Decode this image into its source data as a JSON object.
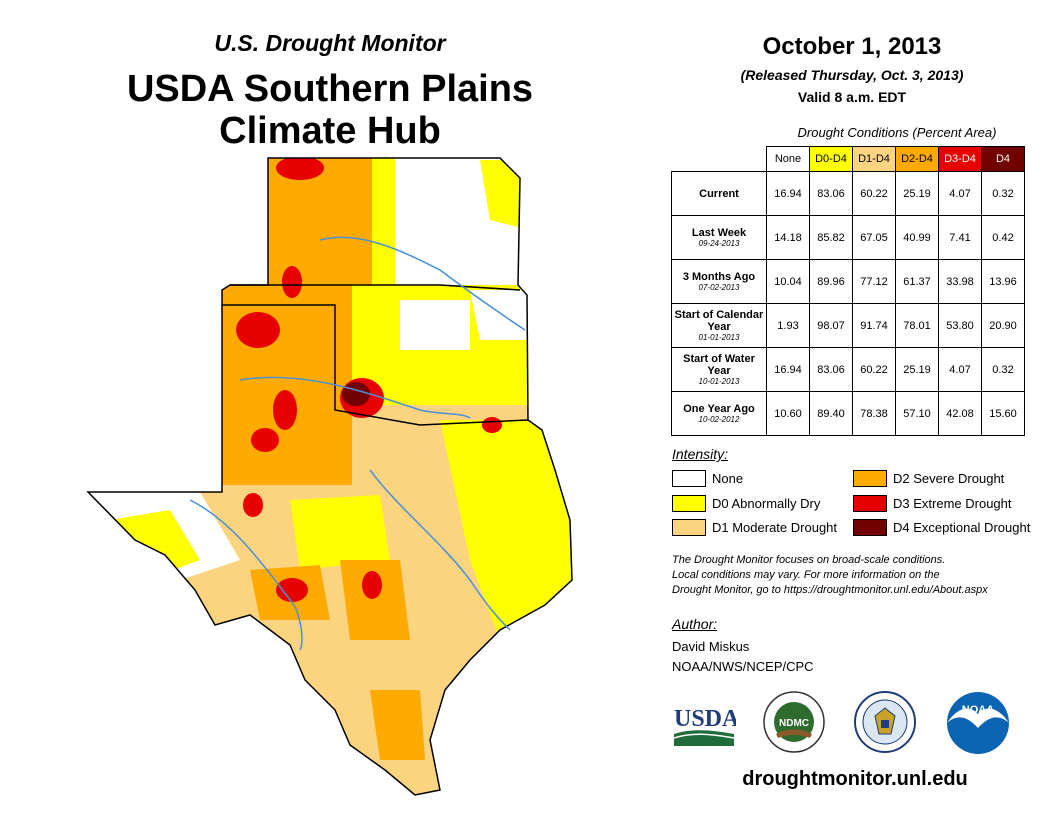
{
  "header": {
    "subtitle": "U.S. Drought Monitor",
    "title_line1": "USDA Southern Plains",
    "title_line2": "Climate Hub"
  },
  "release": {
    "date": "October 1, 2013",
    "released": "(Released Thursday, Oct. 3, 2013)",
    "valid": "Valid 8 a.m. EDT"
  },
  "stats": {
    "caption": "Drought Conditions (Percent Area)",
    "columns": [
      "None",
      "D0-D4",
      "D1-D4",
      "D2-D4",
      "D3-D4",
      "D4"
    ],
    "column_colors": [
      "#ffffff",
      "#ffff00",
      "#fcd37f",
      "#ffaa00",
      "#e60000",
      "#730000"
    ],
    "rows": [
      {
        "label": "Current",
        "date": "",
        "values": [
          "16.94",
          "83.06",
          "60.22",
          "25.19",
          "4.07",
          "0.32"
        ]
      },
      {
        "label": "Last Week",
        "date": "09-24-2013",
        "values": [
          "14.18",
          "85.82",
          "67.05",
          "40.99",
          "7.41",
          "0.42"
        ]
      },
      {
        "label": "3 Months Ago",
        "date": "07-02-2013",
        "values": [
          "10.04",
          "89.96",
          "77.12",
          "61.37",
          "33.98",
          "13.96"
        ]
      },
      {
        "label": "Start of Calendar Year",
        "date": "01-01-2013",
        "values": [
          "1.93",
          "98.07",
          "91.74",
          "78.01",
          "53.80",
          "20.90"
        ]
      },
      {
        "label": "Start of Water Year",
        "date": "10-01-2013",
        "values": [
          "16.94",
          "83.06",
          "60.22",
          "25.19",
          "4.07",
          "0.32"
        ]
      },
      {
        "label": "One Year Ago",
        "date": "10-02-2012",
        "values": [
          "10.60",
          "89.40",
          "78.38",
          "57.10",
          "42.08",
          "15.60"
        ]
      }
    ]
  },
  "legend": {
    "title": "Intensity:",
    "items": [
      {
        "label": "None",
        "color": "#ffffff"
      },
      {
        "label": "D0 Abnormally Dry",
        "color": "#ffff00"
      },
      {
        "label": "D1 Moderate Drought",
        "color": "#fcd37f"
      },
      {
        "label": "D2 Severe Drought",
        "color": "#ffaa00"
      },
      {
        "label": "D3 Extreme Drought",
        "color": "#e60000"
      },
      {
        "label": "D4 Exceptional Drought",
        "color": "#730000"
      }
    ]
  },
  "note": {
    "line1": "The Drought Monitor focuses on broad-scale conditions.",
    "line2": "Local conditions may vary. For more information on the",
    "line3": "Drought Monitor, go to https://droughtmonitor.unl.edu/About.aspx"
  },
  "author": {
    "label": "Author:",
    "name": "David Miskus",
    "org": "NOAA/NWS/NCEP/CPC"
  },
  "logos": {
    "usda": "USDA",
    "ndmc": "NDMC",
    "noaa": "NOAA"
  },
  "footer": {
    "url": "droughtmonitor.unl.edu"
  }
}
